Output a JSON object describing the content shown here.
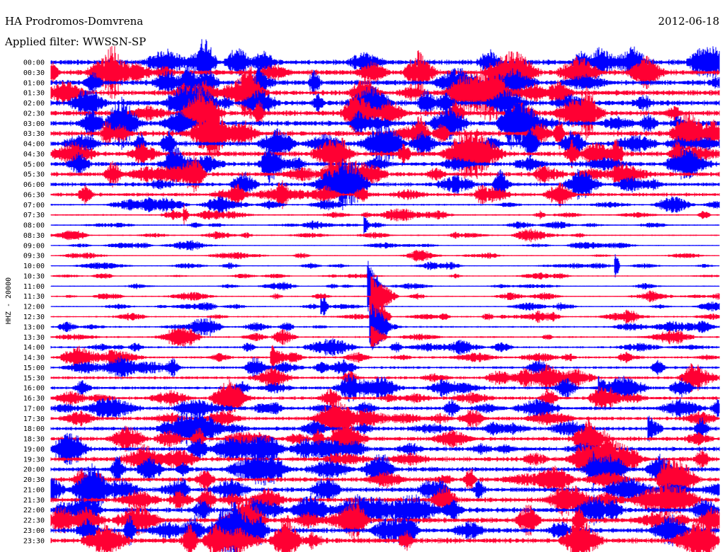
{
  "header": {
    "station": "HA Prodromos-Domvrena",
    "date": "2012-06-18",
    "filter": "Applied filter: WWSSN-SP"
  },
  "chart_data": {
    "type": "line",
    "title": "HA Prodromos-Domvrena",
    "ylabel": "HHZ - 20000",
    "xlabel": "",
    "colors": [
      "#0000ff",
      "#ff0033"
    ],
    "grid": false,
    "legend": "none",
    "row_labels": [
      "00:00",
      "00:30",
      "01:00",
      "01:30",
      "02:00",
      "02:30",
      "03:00",
      "03:30",
      "04:00",
      "04:30",
      "05:00",
      "05:30",
      "06:00",
      "06:30",
      "07:00",
      "07:30",
      "08:00",
      "08:30",
      "09:00",
      "09:30",
      "10:00",
      "10:30",
      "11:00",
      "11:30",
      "12:00",
      "12:30",
      "13:00",
      "13:30",
      "14:00",
      "14:30",
      "15:00",
      "15:30",
      "16:00",
      "16:30",
      "17:00",
      "17:30",
      "18:00",
      "18:30",
      "19:00",
      "19:30",
      "20:00",
      "20:30",
      "21:00",
      "21:30",
      "22:00",
      "22:30",
      "23:00",
      "23:30"
    ],
    "noise_level": [
      1.0,
      1.0,
      1.0,
      1.0,
      1.0,
      1.0,
      1.0,
      1.0,
      0.95,
      0.95,
      0.85,
      0.85,
      0.75,
      0.7,
      0.35,
      0.3,
      0.25,
      0.25,
      0.2,
      0.2,
      0.2,
      0.2,
      0.2,
      0.25,
      0.25,
      0.3,
      0.35,
      0.35,
      0.4,
      0.45,
      0.5,
      0.55,
      0.6,
      0.65,
      0.7,
      0.7,
      0.75,
      0.8,
      0.8,
      0.85,
      0.9,
      0.9,
      0.9,
      0.95,
      0.95,
      1.0,
      1.0,
      1.0
    ],
    "events": [
      {
        "row": 1,
        "x": 0.55,
        "amp": 1.6,
        "dur": 0.03
      },
      {
        "row": 22,
        "x": 0.475,
        "amp": 2.4,
        "dur": 0.02
      },
      {
        "row": 23,
        "x": 0.48,
        "amp": 2.0,
        "dur": 0.04
      },
      {
        "row": 24,
        "x": 0.405,
        "amp": 1.2,
        "dur": 0.01
      },
      {
        "row": 25,
        "x": 0.478,
        "amp": 3.0,
        "dur": 0.03
      },
      {
        "row": 26,
        "x": 0.478,
        "amp": 2.4,
        "dur": 0.03
      },
      {
        "row": 27,
        "x": 0.48,
        "amp": 1.2,
        "dur": 0.02
      },
      {
        "row": 29,
        "x": 0.33,
        "amp": 1.2,
        "dur": 0.02
      },
      {
        "row": 32,
        "x": 0.82,
        "amp": 1.1,
        "dur": 0.01
      },
      {
        "row": 36,
        "x": 0.895,
        "amp": 1.3,
        "dur": 0.02
      },
      {
        "row": 15,
        "x": 0.2,
        "amp": 1.0,
        "dur": 0.005
      },
      {
        "row": 16,
        "x": 0.47,
        "amp": 1.0,
        "dur": 0.005
      },
      {
        "row": 20,
        "x": 0.845,
        "amp": 1.4,
        "dur": 0.005
      }
    ]
  }
}
